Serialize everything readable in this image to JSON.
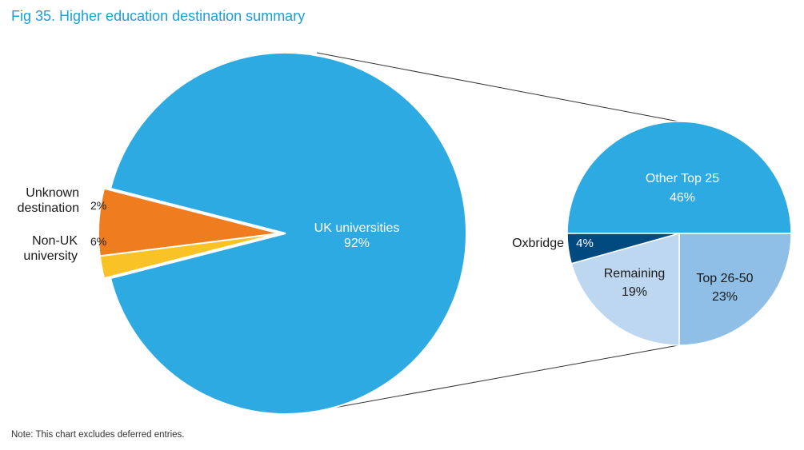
{
  "title": "Fig 35. Higher education destination summary",
  "note": "Note: This chart excludes deferred entries.",
  "colors": {
    "uk": "#2eaae3",
    "unknown": "#f9c325",
    "nonuk": "#f07c20",
    "oxbridge": "#004a80",
    "other_top25": "#2eaae3",
    "top26_50": "#8fbfe6",
    "remaining": "#bcd7ef",
    "connector": "#333333"
  },
  "chart_data": [
    {
      "type": "pie",
      "title": "Fig 35. Higher education destination summary",
      "slices": [
        {
          "label": "UK universities",
          "value": 92,
          "pct_label": "92%"
        },
        {
          "label": "Unknown destination",
          "label_lines": [
            "Unknown",
            "destination"
          ],
          "value": 2,
          "pct_label": "2%"
        },
        {
          "label": "Non-UK university",
          "label_lines": [
            "Non-UK",
            "university"
          ],
          "value": 6,
          "pct_label": "6%"
        }
      ]
    },
    {
      "type": "pie",
      "breakdown_of": "UK universities",
      "slices": [
        {
          "label": "Other Top 25",
          "value": 46,
          "pct_label": "46%"
        },
        {
          "label": "Top 26-50",
          "value": 23,
          "pct_label": "23%"
        },
        {
          "label": "Remaining",
          "value": 19,
          "pct_label": "19%"
        },
        {
          "label": "Oxbridge",
          "value": 4,
          "pct_label": "4%"
        }
      ]
    }
  ]
}
